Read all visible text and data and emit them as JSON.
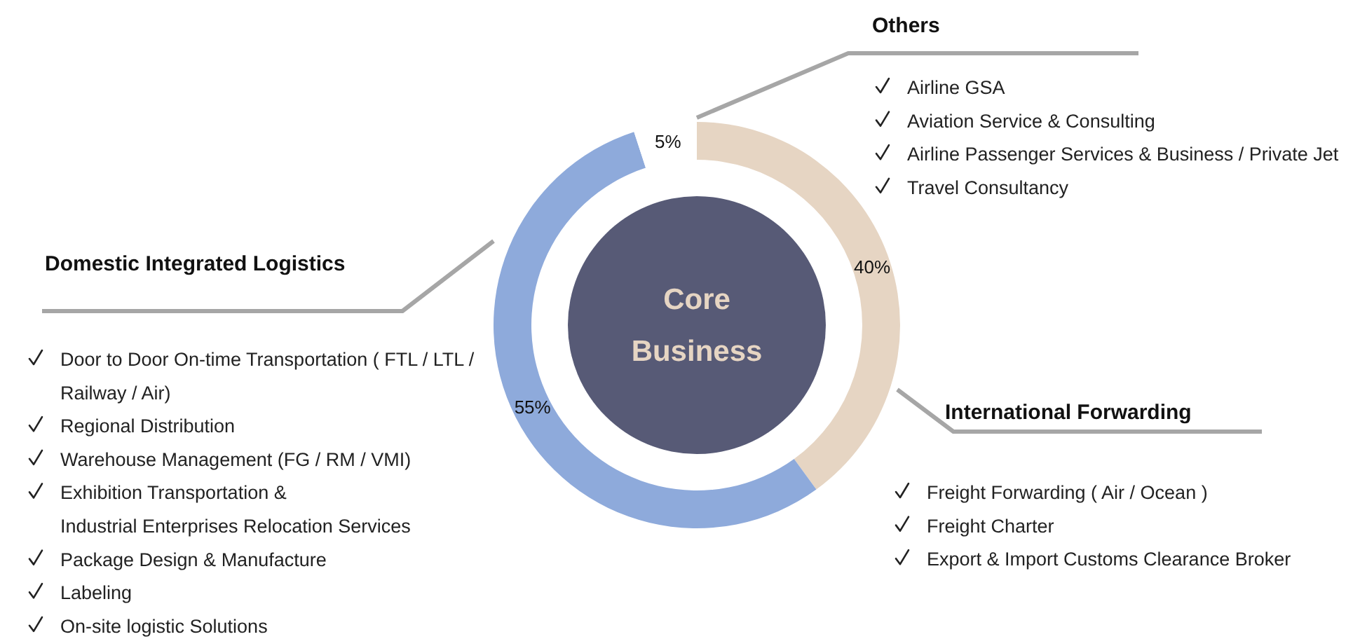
{
  "chart_data": {
    "type": "donut",
    "title": "Core Business",
    "categories": [
      "International Forwarding",
      "Domestic Integrated Logistics",
      "Others"
    ],
    "values": [
      40,
      55,
      5
    ],
    "colors": [
      "#e6d5c3",
      "#8eaadb",
      "#ffffff"
    ],
    "value_labels": [
      "40%",
      "55%",
      "5%"
    ],
    "annotations": [
      "Airline GSA",
      "Aviation Service & Consulting",
      "Airline Passenger Services & Business / Private Jet",
      "Travel Consultancy",
      "Door to Door On-time Transportation ( FTL / LTL /\nRailway / Air)",
      "Regional Distribution",
      "Warehouse Management (FG / RM / VMI)",
      "Exhibition Transportation &\nIndustrial Enterprises Relocation Services",
      "Package Design & Manufacture",
      "Labeling",
      "On-site logistic Solutions",
      "Freight Forwarding ( Air / Ocean )",
      "Freight Charter",
      "Export & Import Customs Clearance Broker"
    ]
  }
}
